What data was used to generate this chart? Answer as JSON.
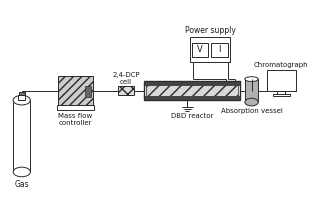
{
  "bg_color": "#ffffff",
  "line_color": "#2a2a2a",
  "fill_hatch": "#cccccc",
  "fill_dbd": "#c8c8c8",
  "fill_dark": "#555555",
  "fill_abs": "#b0b0b0",
  "text_color": "#1a1a1a",
  "labels": {
    "gas": "Gas",
    "mass_flow": "Mass flow\ncontroller",
    "dcp_cell": "2,4-DCP\ncell",
    "dbd_reactor": "DBD reactor",
    "power_supply": "Power supply",
    "absorption": "Absorption vessel",
    "chromatograph": "Chromatograph",
    "V": "V",
    "I": "I"
  },
  "figsize": [
    3.12,
    2.08
  ],
  "dpi": 100
}
